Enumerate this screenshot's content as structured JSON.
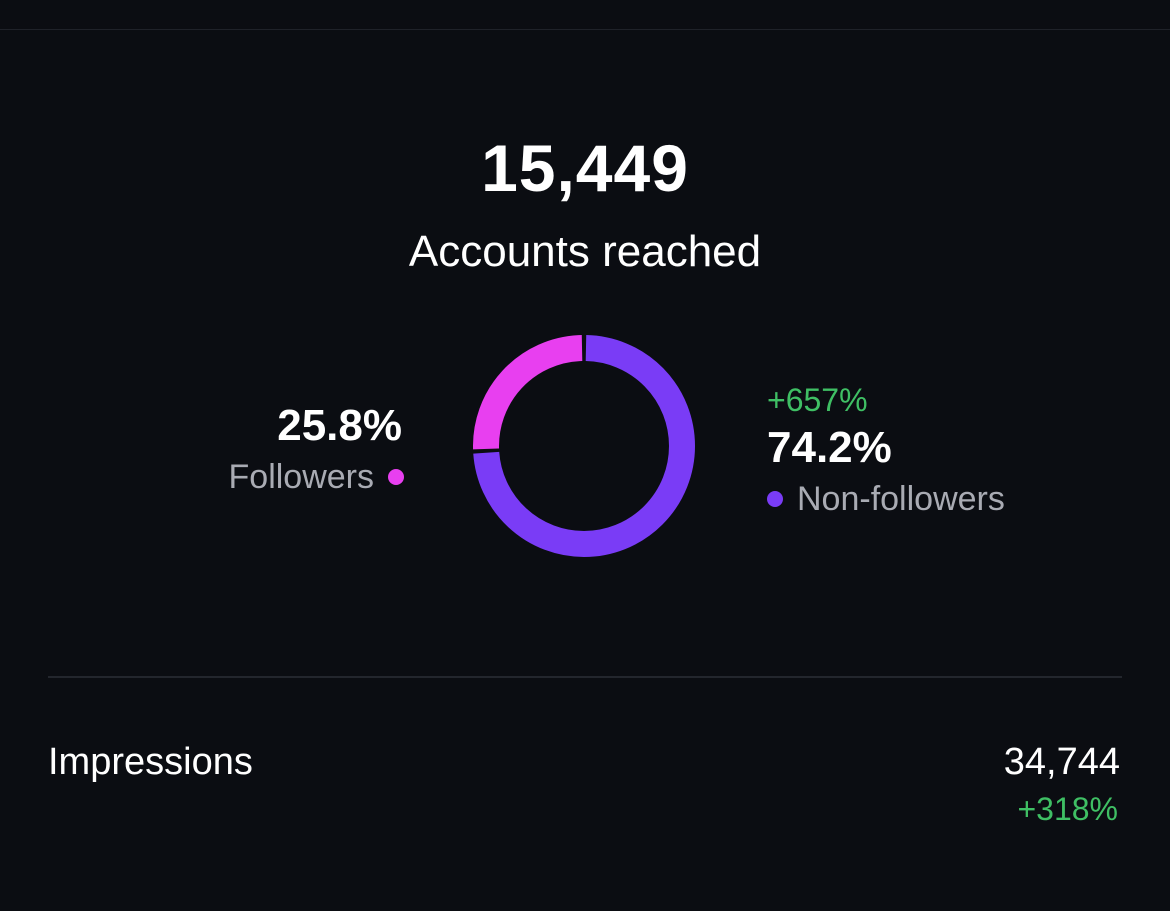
{
  "reach": {
    "value": "15,449",
    "label": "Accounts reached"
  },
  "followers": {
    "percent": "25.8%",
    "label": "Followers",
    "share": 25.8,
    "color": "#e83ff0"
  },
  "non_followers": {
    "change": "+657%",
    "percent": "74.2%",
    "label": "Non-followers",
    "share": 74.2,
    "color": "#7a3cf6"
  },
  "impressions": {
    "label": "Impressions",
    "value": "34,744",
    "change": "+318%"
  },
  "colors": {
    "background": "#0b0d12",
    "positive": "#3fbf64",
    "muted_text": "#a9abb3"
  },
  "chart_data": {
    "type": "pie",
    "categories": [
      "Followers",
      "Non-followers"
    ],
    "values": [
      25.8,
      74.2
    ]
  }
}
